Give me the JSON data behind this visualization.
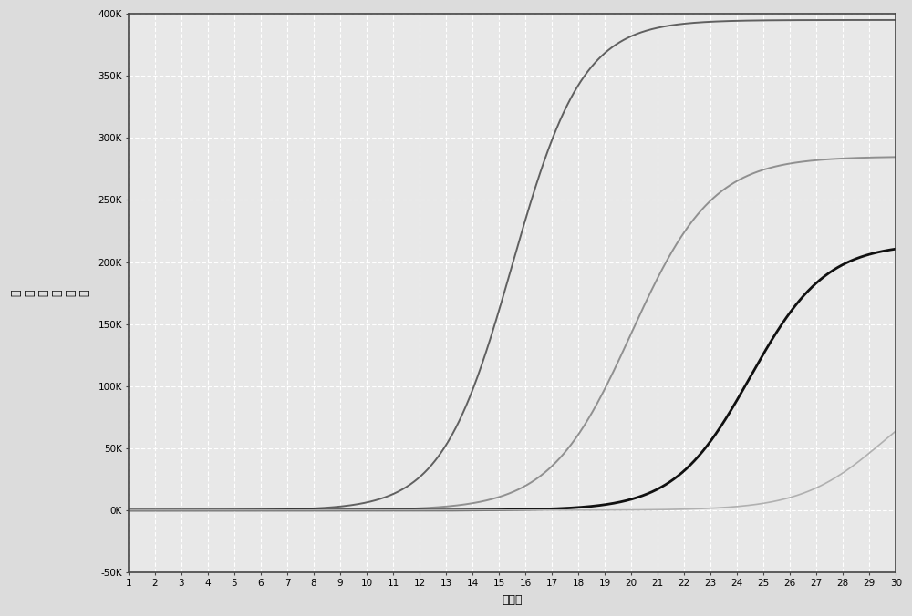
{
  "title": "",
  "xlabel": "循环数",
  "ylabel_chars": [
    "相",
    "对",
    "荧",
    "光",
    "强",
    "度"
  ],
  "xlim": [
    1,
    30
  ],
  "ylim": [
    -50000,
    400000
  ],
  "xticks": [
    1,
    2,
    3,
    4,
    5,
    6,
    7,
    8,
    9,
    10,
    11,
    12,
    13,
    14,
    15,
    16,
    17,
    18,
    19,
    20,
    21,
    22,
    23,
    24,
    25,
    26,
    27,
    28,
    29,
    30
  ],
  "yticks": [
    -50000,
    0,
    50000,
    100000,
    150000,
    200000,
    250000,
    300000,
    350000,
    400000
  ],
  "ytick_labels": [
    "-50K",
    "0K",
    "50K",
    "100K",
    "150K",
    "200K",
    "250K",
    "300K",
    "350K",
    "400K"
  ],
  "background_color": "#dcdcdc",
  "plot_bg_color": "#e8e8e8",
  "grid_color": "#ffffff",
  "curves": [
    {
      "color": "#606060",
      "linewidth": 1.4,
      "midpoint": 15.5,
      "plateau": 395000,
      "steepness": 0.75
    },
    {
      "color": "#909090",
      "linewidth": 1.4,
      "midpoint": 20.0,
      "plateau": 285000,
      "steepness": 0.65
    },
    {
      "color": "#101010",
      "linewidth": 2.0,
      "midpoint": 24.5,
      "plateau": 215000,
      "steepness": 0.7
    },
    {
      "color": "#b0b0b0",
      "linewidth": 1.2,
      "midpoint": 29.5,
      "plateau": 110000,
      "steepness": 0.65
    }
  ]
}
